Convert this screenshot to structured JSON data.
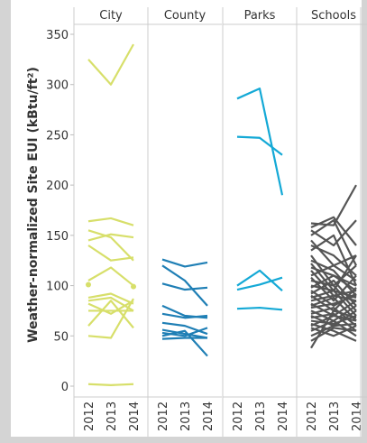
{
  "chart_data": {
    "type": "line",
    "ylabel": "Weather-normalized Site EUI (kBtu/ft²)",
    "ylim": [
      0,
      360
    ],
    "yticks": [
      0,
      50,
      100,
      150,
      200,
      250,
      300,
      350
    ],
    "x": [
      "2012",
      "2013",
      "2014"
    ],
    "grid": false,
    "panels": [
      {
        "name": "City",
        "color": "#d7df6a",
        "series": [
          {
            "values": [
              325,
              300,
              340
            ]
          },
          {
            "values": [
              164,
              167,
              160
            ]
          },
          {
            "values": [
              155,
              148,
              125
            ]
          },
          {
            "values": [
              145,
              151,
              148
            ]
          },
          {
            "values": [
              140,
              125,
              128
            ]
          },
          {
            "values": [
              105,
              118,
              100
            ]
          },
          {
            "values": [
              88,
              92,
              82
            ]
          },
          {
            "values": [
              85,
              88,
              75
            ]
          },
          {
            "values": [
              82,
              72,
              85
            ]
          },
          {
            "values": [
              75,
              75,
              75
            ]
          },
          {
            "values": [
              60,
              85,
              58
            ]
          },
          {
            "values": [
              50,
              48,
              87
            ]
          },
          {
            "values": [
              2,
              1,
              2
            ]
          },
          {
            "values": [
              101,
              null,
              null
            ]
          },
          {
            "values": [
              null,
              null,
              99
            ]
          }
        ]
      },
      {
        "name": "County",
        "color": "#1f7fb5",
        "series": [
          {
            "values": [
              126,
              119,
              123
            ]
          },
          {
            "values": [
              120,
              105,
              80
            ]
          },
          {
            "values": [
              102,
              96,
              98
            ]
          },
          {
            "values": [
              80,
              70,
              68
            ]
          },
          {
            "values": [
              72,
              68,
              70
            ]
          },
          {
            "values": [
              63,
              60,
              52
            ]
          },
          {
            "values": [
              56,
              52,
              48
            ]
          },
          {
            "values": [
              53,
              50,
              58
            ]
          },
          {
            "values": [
              50,
              55,
              30
            ]
          },
          {
            "values": [
              47,
              48,
              48
            ]
          }
        ]
      },
      {
        "name": "Parks",
        "color": "#14a9d6",
        "series": [
          {
            "values": [
              286,
              296,
              190
            ]
          },
          {
            "values": [
              248,
              247,
              230
            ]
          },
          {
            "values": [
              100,
              115,
              95
            ]
          },
          {
            "values": [
              96,
              101,
              108
            ]
          },
          {
            "values": [
              77,
              78,
              76
            ]
          }
        ]
      },
      {
        "name": "Schools",
        "color": "#555555",
        "series": [
          {
            "values": [
              162,
              160,
              200
            ]
          },
          {
            "values": [
              158,
              168,
              140
            ]
          },
          {
            "values": [
              155,
              140,
              165
            ]
          },
          {
            "values": [
              150,
              165,
              120
            ]
          },
          {
            "values": [
              145,
              120,
              130
            ]
          },
          {
            "values": [
              140,
              130,
              110
            ]
          },
          {
            "values": [
              135,
              150,
              100
            ]
          },
          {
            "values": [
              130,
              100,
              120
            ]
          },
          {
            "values": [
              125,
              115,
              90
            ]
          },
          {
            "values": [
              122,
              95,
              130
            ]
          },
          {
            "values": [
              118,
              110,
              95
            ]
          },
          {
            "values": [
              115,
              90,
              85
            ]
          },
          {
            "values": [
              110,
              120,
              105
            ]
          },
          {
            "values": [
              108,
              85,
              110
            ]
          },
          {
            "values": [
              105,
              100,
              75
            ]
          },
          {
            "values": [
              100,
              95,
              88
            ]
          },
          {
            "values": [
              98,
              110,
              100
            ]
          },
          {
            "values": [
              95,
              80,
              92
            ]
          },
          {
            "values": [
              92,
              105,
              80
            ]
          },
          {
            "values": [
              90,
              75,
              98
            ]
          },
          {
            "values": [
              88,
              95,
              70
            ]
          },
          {
            "values": [
              85,
              90,
              95
            ]
          },
          {
            "values": [
              82,
              70,
              85
            ]
          },
          {
            "values": [
              80,
              88,
              65
            ]
          },
          {
            "values": [
              78,
              82,
              90
            ]
          },
          {
            "values": [
              75,
              65,
              80
            ]
          },
          {
            "values": [
              72,
              78,
              60
            ]
          },
          {
            "values": [
              70,
              60,
              75
            ]
          },
          {
            "values": [
              68,
              72,
              55
            ]
          },
          {
            "values": [
              65,
              62,
              70
            ]
          },
          {
            "values": [
              62,
              55,
              45
            ]
          },
          {
            "values": [
              60,
              70,
              65
            ]
          },
          {
            "values": [
              58,
              50,
              60
            ]
          },
          {
            "values": [
              55,
              65,
              50
            ]
          },
          {
            "values": [
              50,
              60,
              62
            ]
          },
          {
            "values": [
              45,
              58,
              55
            ]
          },
          {
            "values": [
              38,
              75,
              68
            ]
          }
        ]
      }
    ]
  }
}
